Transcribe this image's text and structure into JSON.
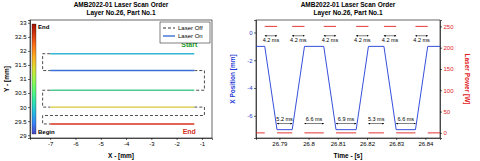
{
  "chart_data": [
    {
      "type": "line",
      "title": "AMB2022-01 Laser Scan Order",
      "subtitle": "Layer No.26, Part No.1",
      "x_label": "X - [mm]",
      "y_label": "Y - [mm]",
      "xlim": [
        -7.8,
        -0.6
      ],
      "xticks": [
        -7,
        -6,
        -5,
        -4,
        -3,
        -2,
        -1
      ],
      "ylim": [
        28.9,
        33.1
      ],
      "yticks": [
        29,
        29.5,
        30,
        30.5,
        31,
        31.5,
        32,
        32.5,
        33
      ],
      "legend": "upper right",
      "series": [
        {
          "name": "Laser Off",
          "color": "#000000",
          "line_style": "dashed",
          "x": [
            -7.0,
            -7.3,
            -7.3,
            -7.0,
            null,
            -1.3,
            -0.9,
            -0.9,
            -1.3,
            null,
            -7.0,
            -7.3,
            -7.3,
            -7.0,
            null,
            -1.3,
            -0.9,
            -0.9,
            -7.3,
            -7.3,
            -7.0
          ],
          "values": [
            31.9,
            31.9,
            31.3,
            31.3,
            null,
            31.3,
            31.3,
            30.6,
            30.6,
            null,
            30.6,
            30.6,
            30.0,
            30.0,
            null,
            30.0,
            30.0,
            29.7,
            29.7,
            29.4,
            29.4
          ]
        },
        {
          "name": "Laser On",
          "color": "#3a6fd8",
          "line_style": "solid",
          "colors": [
            "#33b6d6",
            "#3a6fd8",
            "#4fc98f",
            "#d8c83a",
            "#d7301f"
          ],
          "x": [
            -1.3,
            -7.0,
            null,
            -7.0,
            -1.3,
            null,
            -1.3,
            -7.0,
            null,
            -7.0,
            -1.3,
            null,
            -7.0,
            -1.3
          ],
          "values": [
            31.9,
            31.9,
            null,
            31.3,
            31.3,
            null,
            30.6,
            30.6,
            null,
            30.0,
            30.0,
            null,
            29.4,
            29.4
          ]
        }
      ],
      "colorbar": {
        "labels": [
          "Begin",
          "End"
        ]
      },
      "annotations": [
        {
          "text": "Start",
          "x": -1.5,
          "y": 32.15,
          "color": "#1a9e2a"
        },
        {
          "text": "End",
          "x": -1.5,
          "y": 29.05,
          "color": "#d7301f"
        }
      ]
    },
    {
      "type": "line",
      "title": "AMB2022-01 Laser Scan Order",
      "subtitle": "Layer No.26, Part No.1",
      "x_label": "Time - [s]",
      "y_label": "X Position [mm]",
      "y2_label": "Laser Power [W]",
      "xlim": [
        26.782,
        26.845
      ],
      "xticks": [
        26.79,
        26.8,
        26.81,
        26.82,
        26.83,
        26.84
      ],
      "ylim": [
        -7.6,
        0.9
      ],
      "yticks": [
        -6,
        -4,
        -2,
        0
      ],
      "y2lim": [
        -12,
        265
      ],
      "y2ticks": [
        0,
        50,
        100,
        150,
        200,
        250
      ],
      "series": [
        {
          "color": "#1f3bd6",
          "line_style": "solid",
          "x": [
            26.782,
            26.785,
            26.7892,
            26.7944,
            26.7986,
            26.8052,
            26.8094,
            26.8163,
            26.8205,
            26.8258,
            26.83,
            26.8366,
            26.8408,
            26.845
          ],
          "values": [
            -1,
            -1,
            -7,
            -7,
            -1,
            -1,
            -7,
            -7,
            -1,
            -1,
            -7,
            -7,
            -1,
            -1
          ]
        },
        {
          "color": "#e3201b",
          "line_style": "solid",
          "axis": "y2",
          "x": [
            26.782,
            26.785,
            null,
            26.785,
            26.7892,
            null,
            26.7892,
            26.7944,
            null,
            26.7944,
            26.7986,
            null,
            26.7986,
            26.8052,
            null,
            26.8052,
            26.8094,
            null,
            26.8094,
            26.8163,
            null,
            26.8163,
            26.8205,
            null,
            26.8205,
            26.8258,
            null,
            26.8258,
            26.83,
            null,
            26.83,
            26.8366,
            null,
            26.8366,
            26.8408,
            null,
            26.8408,
            26.845
          ],
          "values": [
            0,
            0,
            null,
            250,
            250,
            null,
            0,
            0,
            null,
            250,
            250,
            null,
            0,
            0,
            null,
            250,
            250,
            null,
            0,
            0,
            null,
            250,
            250,
            null,
            0,
            0,
            null,
            250,
            250,
            null,
            0,
            0,
            null,
            250,
            250,
            null,
            0,
            0
          ]
        }
      ],
      "annotations": [
        {
          "text": "4.2 ms",
          "x0": 26.785,
          "x1": 26.7892,
          "y": 228,
          "axis": "y2"
        },
        {
          "text": "4.2 ms",
          "x0": 26.7944,
          "x1": 26.7986,
          "y": 228,
          "axis": "y2"
        },
        {
          "text": "4.2 ms",
          "x0": 26.8052,
          "x1": 26.8094,
          "y": 228,
          "axis": "y2"
        },
        {
          "text": "4.2 ms",
          "x0": 26.8163,
          "x1": 26.8205,
          "y": 228,
          "axis": "y2"
        },
        {
          "text": "4.2 ms",
          "x0": 26.8258,
          "x1": 26.83,
          "y": 228,
          "axis": "y2"
        },
        {
          "text": "4.2 ms",
          "x0": 26.8366,
          "x1": 26.8408,
          "y": 228,
          "axis": "y2"
        },
        {
          "text": "5.2 ms",
          "x0": 26.7892,
          "x1": 26.7944,
          "y": 22,
          "axis": "y2"
        },
        {
          "text": "6.6 ms",
          "x0": 26.7986,
          "x1": 26.8052,
          "y": 22,
          "axis": "y2"
        },
        {
          "text": "6.9 ms",
          "x0": 26.8094,
          "x1": 26.8163,
          "y": 22,
          "axis": "y2"
        },
        {
          "text": "5.3 ms",
          "x0": 26.8205,
          "x1": 26.8258,
          "y": 22,
          "axis": "y2"
        },
        {
          "text": "6.6 ms",
          "x0": 26.83,
          "x1": 26.8366,
          "y": 22,
          "axis": "y2"
        }
      ]
    }
  ]
}
